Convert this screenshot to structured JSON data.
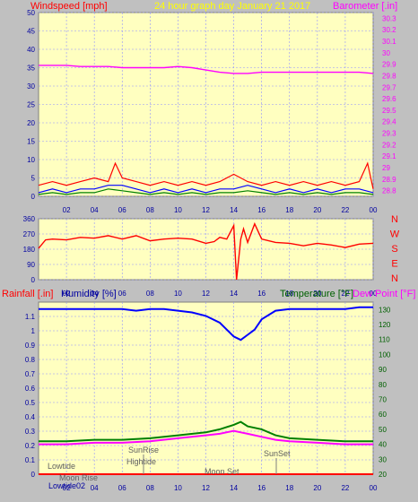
{
  "header": {
    "title": "24 hour graph day   January 21 2017",
    "windspeed_label": "Windspeed [mph]",
    "barometer_label": "Barometer [.in]"
  },
  "colors": {
    "background": "#c0c0c0",
    "plot_bg": "#ffffc0",
    "red": "#ff0000",
    "blue": "#0000ff",
    "green": "#008000",
    "magenta": "#ff00ff",
    "navy": "#0000a0",
    "dark_green": "#006000",
    "title_yellow": "#ffff00"
  },
  "chart_data": [
    {
      "type": "line",
      "title": "24 hour graph day   January 21 2017",
      "x_ticks": [
        "02",
        "04",
        "06",
        "08",
        "10",
        "12",
        "14",
        "16",
        "18",
        "20",
        "22",
        "00"
      ],
      "xlim": [
        0,
        24
      ],
      "ylabel_left": "Windspeed [mph]",
      "ylabel_right": "Barometer [.in]",
      "y_left_ticks": [
        "0",
        "5",
        "10",
        "15",
        "20",
        "25",
        "30",
        "35",
        "40",
        "45",
        "50"
      ],
      "y_left_lim": [
        0,
        50
      ],
      "y_right_ticks": [
        "28.8",
        "28.9",
        "29",
        "29.1",
        "29.2",
        "29.3",
        "29.4",
        "29.5",
        "29.6",
        "29.7",
        "29.8",
        "29.9",
        "30",
        "30.1",
        "30.2",
        "30.3"
      ],
      "y_right_lim": [
        28.75,
        30.35
      ],
      "grid": true,
      "series": [
        {
          "color": "#ff00ff",
          "axis": "right",
          "x": [
            0,
            1,
            2,
            3,
            4,
            5,
            6,
            7,
            8,
            9,
            10,
            11,
            12,
            13,
            14,
            15,
            16,
            17,
            18,
            19,
            20,
            21,
            22,
            23,
            24
          ],
          "values": [
            29.89,
            29.89,
            29.89,
            29.88,
            29.88,
            29.88,
            29.87,
            29.87,
            29.87,
            29.87,
            29.88,
            29.87,
            29.85,
            29.83,
            29.82,
            29.82,
            29.83,
            29.83,
            29.83,
            29.83,
            29.83,
            29.83,
            29.83,
            29.83,
            29.82
          ]
        },
        {
          "color": "#ff0000",
          "axis": "left",
          "x": [
            0,
            1,
            2,
            3,
            4,
            5,
            5.5,
            6,
            7,
            8,
            9,
            10,
            11,
            12,
            13,
            14,
            15,
            16,
            17,
            18,
            19,
            20,
            21,
            22,
            23,
            23.6,
            24
          ],
          "values": [
            3,
            4,
            3,
            4,
            5,
            4,
            9,
            5,
            4,
            3,
            4,
            3,
            4,
            3,
            4,
            6,
            4,
            3,
            4,
            3,
            4,
            3,
            4,
            3,
            4,
            9,
            2
          ]
        },
        {
          "color": "#0000ff",
          "axis": "left",
          "x": [
            0,
            1,
            2,
            3,
            4,
            5,
            6,
            7,
            8,
            9,
            10,
            11,
            12,
            13,
            14,
            15,
            16,
            17,
            18,
            19,
            20,
            21,
            22,
            23,
            24
          ],
          "values": [
            1,
            2,
            1,
            2,
            2,
            3,
            3,
            2,
            1,
            2,
            1,
            2,
            1,
            2,
            2,
            3,
            2,
            1,
            2,
            1,
            2,
            1,
            2,
            2,
            1
          ]
        },
        {
          "color": "#008000",
          "axis": "left",
          "x": [
            0,
            1,
            2,
            3,
            4,
            5,
            6,
            7,
            8,
            9,
            10,
            11,
            12,
            13,
            14,
            15,
            16,
            17,
            18,
            19,
            20,
            21,
            22,
            23,
            24
          ],
          "values": [
            0.5,
            1,
            0.5,
            1,
            1,
            2,
            1.5,
            1,
            0.5,
            1,
            0.5,
            1,
            0.5,
            1,
            1,
            1.5,
            1,
            0.5,
            1,
            0.5,
            1,
            0.5,
            1,
            1,
            0.5
          ]
        }
      ]
    },
    {
      "type": "line",
      "x_ticks": [
        "02",
        "04",
        "06",
        "08",
        "10",
        "12",
        "14",
        "16",
        "18",
        "20",
        "22",
        "00"
      ],
      "xlim": [
        0,
        24
      ],
      "y_left_ticks": [
        "0",
        "90",
        "180",
        "270",
        "360"
      ],
      "y_left_lim": [
        0,
        360
      ],
      "y_right_labels": [
        "N",
        "W",
        "S",
        "E",
        "N"
      ],
      "grid": true,
      "series": [
        {
          "color": "#ff0000",
          "x": [
            0,
            0.5,
            1,
            2,
            3,
            4,
            5,
            6,
            7,
            8,
            9,
            10,
            11,
            12,
            12.6,
            13,
            13.5,
            14,
            14.2,
            14.5,
            14.7,
            15,
            15.5,
            16,
            17,
            18,
            19,
            20,
            21,
            22,
            23,
            24
          ],
          "values": [
            185,
            235,
            240,
            235,
            250,
            245,
            260,
            240,
            260,
            230,
            240,
            245,
            240,
            215,
            225,
            250,
            240,
            320,
            0,
            240,
            300,
            220,
            330,
            240,
            220,
            215,
            200,
            215,
            205,
            190,
            210,
            215
          ]
        }
      ]
    },
    {
      "type": "line",
      "x_ticks": [
        "02",
        "04",
        "06",
        "08",
        "10",
        "12",
        "14",
        "16",
        "18",
        "20",
        "22",
        "00"
      ],
      "xlim": [
        0,
        24
      ],
      "ylabel_left": "Rainfall [.in]",
      "ylabel_left2": "Humidity [%]",
      "ylabel_right": "Temperature [°F]",
      "ylabel_right2": "Dew Point [°F]",
      "y_left_ticks": [
        "0",
        "0.1",
        "0.2",
        "0.3",
        "0.4",
        "0.5",
        "0.6",
        "0.7",
        "0.8",
        "0.9",
        "1",
        "1.1"
      ],
      "y_left_lim": [
        0,
        1.2
      ],
      "y_humidity_ticks": [
        "10",
        "20",
        "30",
        "40",
        "50",
        "60",
        "70",
        "80",
        "90",
        "100"
      ],
      "y_humidity_lim": [
        0,
        100
      ],
      "y_right_ticks": [
        "20",
        "30",
        "40",
        "50",
        "60",
        "70",
        "80",
        "90",
        "100",
        "110",
        "120",
        "130"
      ],
      "y_right_lim": [
        20,
        135
      ],
      "grid": true,
      "annotations": [
        "Lowtide",
        "Moon Rise",
        "SunRise",
        "Hightide",
        "Moon Set",
        "SunSet",
        "Lowtide02"
      ],
      "series": [
        {
          "color": "#0000ff",
          "axis": "humidity",
          "x": [
            0,
            2,
            4,
            6,
            7,
            8,
            9,
            10,
            11,
            12,
            13,
            13.5,
            14,
            14.5,
            15,
            15.5,
            16,
            17,
            18,
            20,
            22,
            23,
            24
          ],
          "values": [
            96,
            96,
            96,
            96,
            95,
            96,
            96,
            95,
            94,
            92,
            88,
            84,
            80,
            78,
            81,
            84,
            90,
            95,
            96,
            96,
            96,
            97,
            97
          ]
        },
        {
          "color": "#008000",
          "axis": "right",
          "x": [
            0,
            2,
            4,
            6,
            8,
            10,
            12,
            13,
            14,
            14.5,
            15,
            16,
            17,
            18,
            20,
            22,
            24
          ],
          "values": [
            42,
            42,
            43,
            43,
            44,
            46,
            48,
            50,
            53,
            55,
            52,
            50,
            46,
            44,
            43,
            42,
            42
          ]
        },
        {
          "color": "#ff00ff",
          "axis": "right",
          "x": [
            0,
            2,
            4,
            6,
            8,
            10,
            12,
            13,
            14,
            14.5,
            15,
            16,
            17,
            18,
            20,
            22,
            24
          ],
          "values": [
            40,
            40,
            41,
            41,
            42,
            44,
            46,
            47,
            49,
            48,
            47,
            45,
            43,
            42,
            41,
            40,
            40
          ]
        },
        {
          "color": "#ff0000",
          "axis": "left",
          "x": [
            0,
            24
          ],
          "values": [
            0,
            0
          ]
        }
      ]
    }
  ]
}
